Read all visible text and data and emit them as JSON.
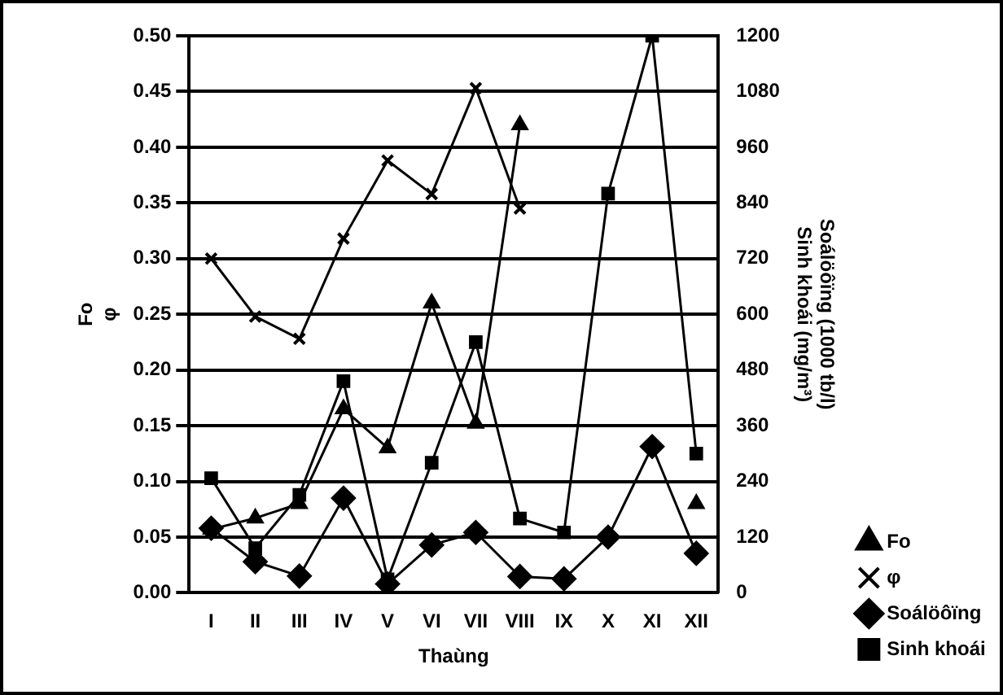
{
  "chart_data": {
    "type": "line",
    "xlabel": "Thaùng",
    "ylabel": "Fo\nφ",
    "y2label": "Soálöôïng (1000 tb/l)\nSinh khoái (mg/m³)",
    "categories": [
      "I",
      "II",
      "III",
      "IV",
      "V",
      "VI",
      "VII",
      "VIII",
      "IX",
      "X",
      "XI",
      "XII"
    ],
    "series": [
      {
        "name": "Fo",
        "color": "#000000",
        "marker": "triangle",
        "values": [
          0.057,
          0.067,
          0.08,
          0.165,
          0.13,
          0.26,
          0.152,
          0.42,
          null,
          null,
          null,
          0.08
        ]
      },
      {
        "name": "φ",
        "color": "#000000",
        "marker": "cross",
        "values": [
          0.3,
          0.248,
          0.228,
          0.318,
          0.388,
          0.358,
          0.453,
          0.345,
          null,
          null,
          null,
          null
        ]
      },
      {
        "name": "Soálöôïng",
        "color": "#000000",
        "marker": "diamond",
        "axis": "y2",
        "values": [
          139,
          67,
          36,
          204,
          19,
          103,
          130,
          35,
          30,
          120,
          315,
          85
        ]
      },
      {
        "name": "Sinh khoái",
        "color": "#000000",
        "marker": "square",
        "axis": "y2",
        "values": [
          247,
          96,
          211,
          456,
          29,
          280,
          540,
          160,
          130,
          860,
          1200,
          300
        ]
      }
    ],
    "ylim": [
      0,
      0.5
    ],
    "yticks": [
      {
        "value": 0,
        "label": "0.00"
      },
      {
        "value": 0.05,
        "label": "0.05"
      },
      {
        "value": 0.1,
        "label": "0.10"
      },
      {
        "value": 0.15,
        "label": "0.15"
      },
      {
        "value": 0.2,
        "label": "0.20"
      },
      {
        "value": 0.25,
        "label": "0.25"
      },
      {
        "value": 0.3,
        "label": "0.30"
      },
      {
        "value": 0.35,
        "label": "0.35"
      },
      {
        "value": 0.4,
        "label": "0.40"
      },
      {
        "value": 0.45,
        "label": "0.45"
      },
      {
        "value": 0.5,
        "label": "0.50"
      }
    ],
    "y2lim": [
      0,
      1200
    ],
    "y2ticks": [
      0,
      120,
      240,
      360,
      480,
      600,
      720,
      840,
      960,
      1080,
      1200
    ],
    "grid": "y",
    "legend": "bottom right",
    "line_style": "solid"
  }
}
